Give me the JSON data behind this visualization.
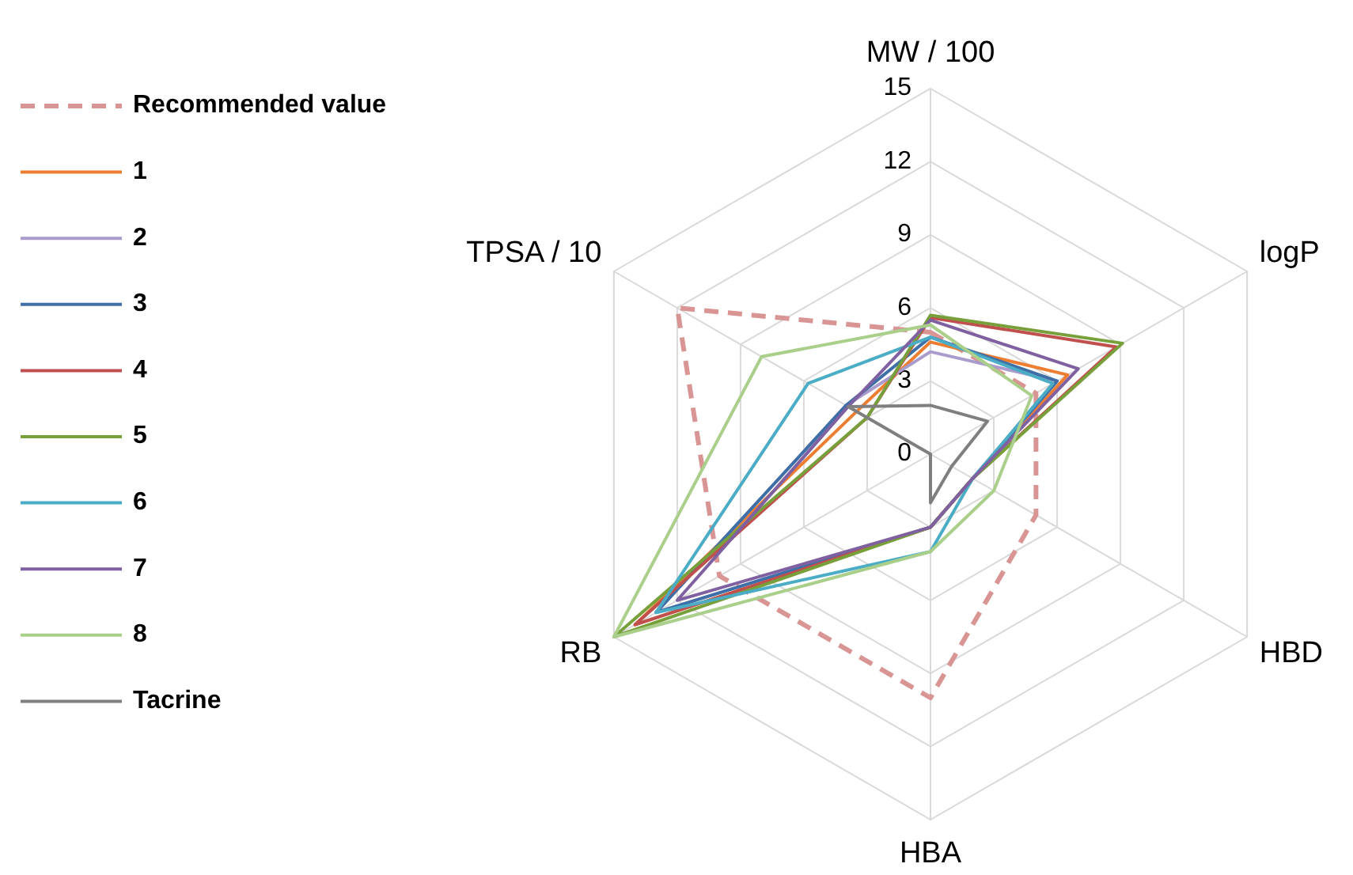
{
  "chart_data": {
    "type": "radar",
    "categories": [
      "MW / 100",
      "logP",
      "HBD",
      "HBA",
      "RB",
      "TPSA / 10"
    ],
    "ylim": [
      0,
      15
    ],
    "yticks": [
      0,
      3,
      6,
      9,
      12,
      15
    ],
    "grid": true,
    "legend": "top left",
    "series": [
      {
        "name": "Recommended value",
        "color": "#d99594",
        "line_style": "dashed",
        "values": [
          5,
          5,
          5,
          10,
          10,
          12
        ]
      },
      {
        "name": "1",
        "color": "#ed7d31",
        "values": [
          4.6,
          6.5,
          2,
          3,
          14,
          3.5
        ]
      },
      {
        "name": "2",
        "color": "#a99bcc",
        "values": [
          4.2,
          6,
          2,
          3,
          13,
          4
        ]
      },
      {
        "name": "3",
        "color": "#3e6fa6",
        "values": [
          4.8,
          6,
          2,
          3,
          13,
          4
        ]
      },
      {
        "name": "4",
        "color": "#c0504d",
        "values": [
          5.6,
          8.8,
          2,
          3,
          14,
          3
        ]
      },
      {
        "name": "5",
        "color": "#77a03a",
        "values": [
          5.7,
          9.1,
          2,
          3,
          15,
          3
        ]
      },
      {
        "name": "6",
        "color": "#4bacc6",
        "values": [
          4.8,
          5.8,
          2,
          4,
          13,
          5.8
        ]
      },
      {
        "name": "7",
        "color": "#7f60a0",
        "values": [
          5.5,
          7,
          2,
          3,
          12,
          3.9
        ]
      },
      {
        "name": "8",
        "color": "#a9cf8a",
        "values": [
          5.3,
          4.8,
          3,
          4,
          15,
          8
        ]
      },
      {
        "name": "Tacrine",
        "color": "#7f7f7f",
        "values": [
          2,
          2.7,
          1,
          2,
          0,
          3.9
        ]
      }
    ]
  }
}
